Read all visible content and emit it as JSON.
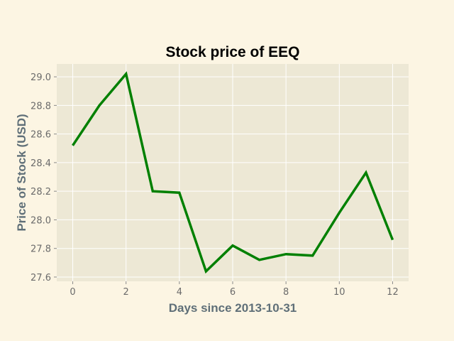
{
  "chart_data": {
    "type": "line",
    "title": "Stock price of EEQ",
    "xlabel": "Days since 2013-10-31",
    "ylabel": "Price of Stock (USD)",
    "x": [
      0,
      1,
      2,
      3,
      4,
      5,
      6,
      7,
      8,
      9,
      10,
      11,
      12
    ],
    "series": [
      {
        "values": [
          28.52,
          28.8,
          29.02,
          28.2,
          28.19,
          27.64,
          27.82,
          27.72,
          27.76,
          27.75,
          28.05,
          28.33,
          27.86
        ]
      }
    ],
    "xlim": [
      -0.6,
      12.6
    ],
    "ylim": [
      27.57,
      29.09
    ],
    "xticks": [
      0,
      2,
      4,
      6,
      8,
      10,
      12
    ],
    "yticks": [
      27.6,
      27.8,
      28.0,
      28.2,
      28.4,
      28.6,
      28.8,
      29.0
    ],
    "ytick_labels": [
      "27.6",
      "27.8",
      "28.0",
      "28.2",
      "28.4",
      "28.6",
      "28.8",
      "29.0"
    ],
    "grid": true,
    "line_color": "#008000",
    "plot_background": "#ede8d5",
    "grid_color": "#ffffff"
  }
}
